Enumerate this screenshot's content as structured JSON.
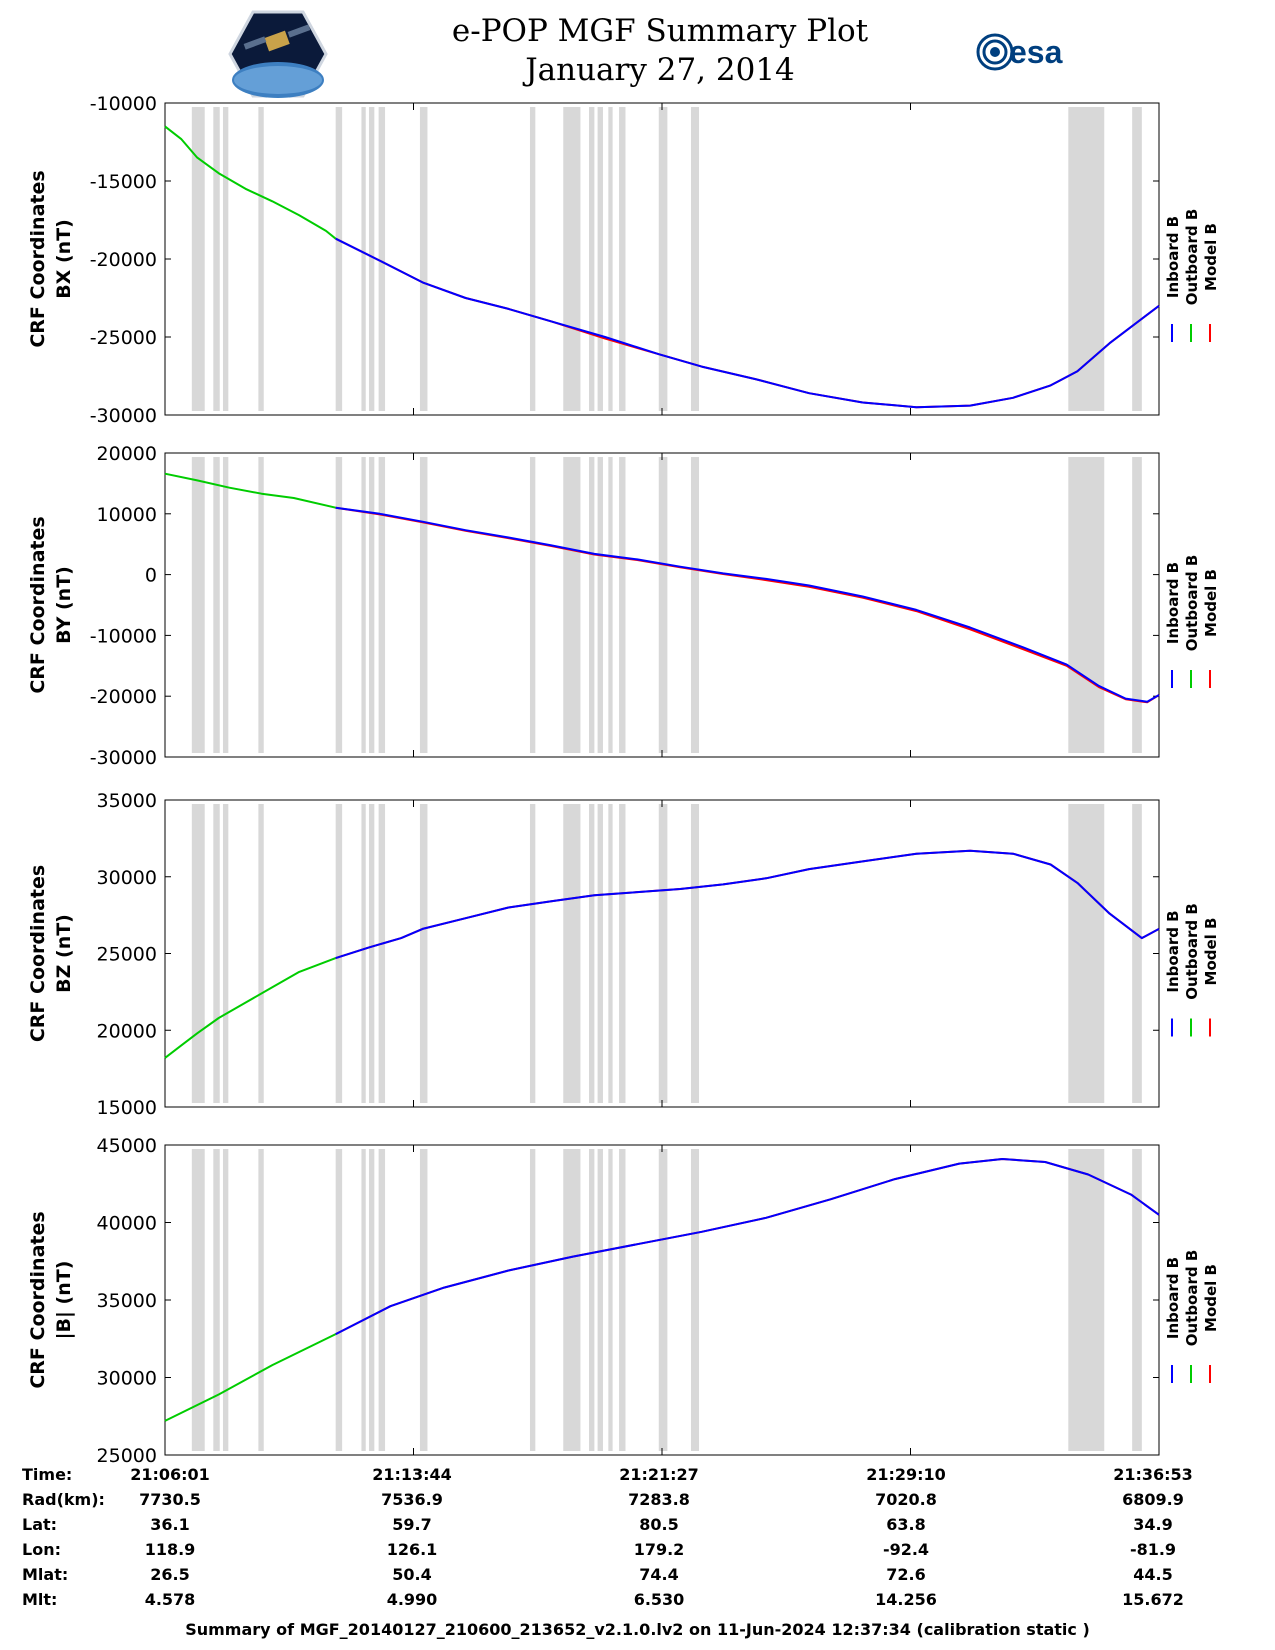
{
  "header": {
    "title": "e-POP MGF Summary Plot",
    "date": "January 27, 2014",
    "esa_logo_text": "esa"
  },
  "colors": {
    "inboard": "#0000ff",
    "outboard": "#00cc00",
    "model": "#ff0000",
    "gap_shading": "#d8d8d8"
  },
  "legend": [
    {
      "label": "Inboard B",
      "color": "#0000ff"
    },
    {
      "label": "Outboard B",
      "color": "#00cc00"
    },
    {
      "label": "Model B",
      "color": "#ff0000"
    }
  ],
  "chart_data": [
    {
      "type": "line",
      "ylabel_top": "CRF Coordinates",
      "ylabel_bottom": "BX (nT)",
      "xlim": [
        0,
        1852
      ],
      "ylim": [
        -30000,
        -10000
      ],
      "yticks": [
        "-10000",
        "-15000",
        "-20000",
        "-25000",
        "-30000"
      ],
      "ytick_values": [
        -10000,
        -15000,
        -20000,
        -25000,
        -30000
      ],
      "gap_intervals": [
        [
          50,
          74
        ],
        [
          90,
          102
        ],
        [
          108,
          118
        ],
        [
          174,
          184
        ],
        [
          318,
          330
        ],
        [
          366,
          374
        ],
        [
          380,
          390
        ],
        [
          398,
          410
        ],
        [
          475,
          489
        ],
        [
          680,
          690
        ],
        [
          742,
          774
        ],
        [
          790,
          800
        ],
        [
          806,
          816
        ],
        [
          826,
          834
        ],
        [
          846,
          858
        ],
        [
          920,
          936
        ],
        [
          980,
          995
        ],
        [
          1683,
          1750
        ],
        [
          1802,
          1820
        ]
      ],
      "outboard_end": 318,
      "series": [
        {
          "name": "Outboard B",
          "x": [
            0,
            30,
            60,
            100,
            150,
            200,
            250,
            300,
            318
          ],
          "y": [
            -11500,
            -12300,
            -13500,
            -14500,
            -15500,
            -16300,
            -17200,
            -18200,
            -18700
          ]
        },
        {
          "name": "Model B",
          "x": [
            318,
            400,
            480,
            560,
            640,
            720,
            820,
            920,
            1000,
            1100,
            1200,
            1300,
            1400,
            1500,
            1580,
            1650,
            1700,
            1760,
            1852
          ],
          "y": [
            -18700,
            -20100,
            -21500,
            -22500,
            -23200,
            -24000,
            -25100,
            -26100,
            -26900,
            -27700,
            -28600,
            -29200,
            -29500,
            -29400,
            -28900,
            -28100,
            -27200,
            -25400,
            -23000
          ]
        },
        {
          "name": "Inboard B",
          "x": [
            318,
            400,
            480,
            560,
            640,
            720,
            820,
            920,
            1000,
            1100,
            1200,
            1300,
            1400,
            1500,
            1580,
            1650,
            1700,
            1760,
            1852
          ],
          "y": [
            -18700,
            -20100,
            -21500,
            -22500,
            -23200,
            -24000,
            -25000,
            -26100,
            -26900,
            -27700,
            -28600,
            -29200,
            -29500,
            -29400,
            -28900,
            -28100,
            -27200,
            -25400,
            -23000
          ]
        }
      ]
    },
    {
      "type": "line",
      "ylabel_top": "CRF Coordinates",
      "ylabel_bottom": "BY (nT)",
      "xlim": [
        0,
        1852
      ],
      "ylim": [
        -30000,
        20000
      ],
      "yticks": [
        "20000",
        "10000",
        "0",
        "-10000",
        "-20000",
        "-30000"
      ],
      "ytick_values": [
        20000,
        10000,
        0,
        -10000,
        -20000,
        -30000
      ],
      "gap_intervals": [
        [
          50,
          74
        ],
        [
          90,
          102
        ],
        [
          108,
          118
        ],
        [
          174,
          184
        ],
        [
          318,
          330
        ],
        [
          366,
          374
        ],
        [
          380,
          390
        ],
        [
          398,
          410
        ],
        [
          475,
          489
        ],
        [
          680,
          690
        ],
        [
          742,
          774
        ],
        [
          790,
          800
        ],
        [
          806,
          816
        ],
        [
          826,
          834
        ],
        [
          846,
          858
        ],
        [
          920,
          936
        ],
        [
          980,
          995
        ],
        [
          1683,
          1750
        ],
        [
          1802,
          1820
        ]
      ],
      "outboard_end": 318,
      "series": [
        {
          "name": "Outboard B",
          "x": [
            0,
            60,
            120,
            180,
            240,
            318
          ],
          "y": [
            16600,
            15500,
            14300,
            13300,
            12600,
            11000
          ]
        },
        {
          "name": "Model B",
          "x": [
            318,
            400,
            480,
            560,
            640,
            720,
            800,
            880,
            960,
            1040,
            1120,
            1200,
            1300,
            1400,
            1500,
            1600,
            1680,
            1740,
            1790,
            1830,
            1852
          ],
          "y": [
            11000,
            9900,
            8600,
            7200,
            6000,
            4700,
            3300,
            2400,
            1200,
            100,
            -900,
            -2000,
            -3800,
            -6000,
            -9000,
            -12300,
            -15000,
            -18500,
            -20500,
            -21000,
            -19800
          ]
        },
        {
          "name": "Inboard B",
          "x": [
            318,
            400,
            480,
            560,
            640,
            720,
            800,
            880,
            960,
            1040,
            1120,
            1200,
            1300,
            1400,
            1500,
            1600,
            1680,
            1740,
            1790,
            1830,
            1852
          ],
          "y": [
            11000,
            10000,
            8700,
            7300,
            6100,
            4800,
            3400,
            2500,
            1300,
            200,
            -700,
            -1800,
            -3600,
            -5800,
            -8700,
            -12000,
            -14800,
            -18300,
            -20400,
            -20900,
            -19800
          ]
        }
      ]
    },
    {
      "type": "line",
      "ylabel_top": "CRF Coordinates",
      "ylabel_bottom": "BZ (nT)",
      "xlim": [
        0,
        1852
      ],
      "ylim": [
        15000,
        35000
      ],
      "yticks": [
        "35000",
        "30000",
        "25000",
        "20000",
        "15000"
      ],
      "ytick_values": [
        35000,
        30000,
        25000,
        20000,
        15000
      ],
      "gap_intervals": [
        [
          50,
          74
        ],
        [
          90,
          102
        ],
        [
          108,
          118
        ],
        [
          174,
          184
        ],
        [
          318,
          330
        ],
        [
          366,
          374
        ],
        [
          380,
          390
        ],
        [
          398,
          410
        ],
        [
          475,
          489
        ],
        [
          680,
          690
        ],
        [
          742,
          774
        ],
        [
          790,
          800
        ],
        [
          806,
          816
        ],
        [
          826,
          834
        ],
        [
          846,
          858
        ],
        [
          920,
          936
        ],
        [
          980,
          995
        ],
        [
          1683,
          1750
        ],
        [
          1802,
          1820
        ]
      ],
      "outboard_end": 318,
      "series": [
        {
          "name": "Outboard B",
          "x": [
            0,
            30,
            60,
            100,
            150,
            200,
            250,
            318
          ],
          "y": [
            18200,
            19000,
            19800,
            20800,
            21800,
            22800,
            23800,
            24700
          ]
        },
        {
          "name": "Model B",
          "x": [
            318,
            380,
            440,
            480,
            560,
            640,
            720,
            800,
            880,
            960,
            1040,
            1120,
            1200,
            1300,
            1400,
            1500,
            1580,
            1650,
            1700,
            1760,
            1820,
            1852
          ],
          "y": [
            24700,
            25400,
            26000,
            26600,
            27300,
            28000,
            28400,
            28800,
            29000,
            29200,
            29500,
            29900,
            30500,
            31000,
            31500,
            31700,
            31500,
            30800,
            29600,
            27600,
            26000,
            26600
          ]
        },
        {
          "name": "Inboard B",
          "x": [
            318,
            380,
            440,
            480,
            560,
            640,
            720,
            800,
            880,
            960,
            1040,
            1120,
            1200,
            1300,
            1400,
            1500,
            1580,
            1650,
            1700,
            1760,
            1820,
            1852
          ],
          "y": [
            24700,
            25400,
            26000,
            26600,
            27300,
            28000,
            28400,
            28800,
            29000,
            29200,
            29500,
            29900,
            30500,
            31000,
            31500,
            31700,
            31500,
            30800,
            29600,
            27600,
            26000,
            26600
          ]
        }
      ]
    },
    {
      "type": "line",
      "ylabel_top": "CRF Coordinates",
      "ylabel_bottom": "|B| (nT)",
      "xlim": [
        0,
        1852
      ],
      "ylim": [
        25000,
        45000
      ],
      "yticks": [
        "45000",
        "40000",
        "35000",
        "30000",
        "25000"
      ],
      "ytick_values": [
        45000,
        40000,
        35000,
        30000,
        25000
      ],
      "gap_intervals": [
        [
          50,
          74
        ],
        [
          90,
          102
        ],
        [
          108,
          118
        ],
        [
          174,
          184
        ],
        [
          318,
          330
        ],
        [
          366,
          374
        ],
        [
          380,
          390
        ],
        [
          398,
          410
        ],
        [
          475,
          489
        ],
        [
          680,
          690
        ],
        [
          742,
          774
        ],
        [
          790,
          800
        ],
        [
          806,
          816
        ],
        [
          826,
          834
        ],
        [
          846,
          858
        ],
        [
          920,
          936
        ],
        [
          980,
          995
        ],
        [
          1683,
          1750
        ],
        [
          1802,
          1820
        ]
      ],
      "outboard_end": 318,
      "series": [
        {
          "name": "Outboard B",
          "x": [
            0,
            100,
            200,
            318
          ],
          "y": [
            27200,
            28900,
            30800,
            32800
          ]
        },
        {
          "name": "Model B",
          "x": [
            318,
            420,
            520,
            640,
            760,
            880,
            1000,
            1120,
            1240,
            1360,
            1480,
            1560,
            1640,
            1720,
            1800,
            1852
          ],
          "y": [
            32800,
            34600,
            35800,
            36900,
            37800,
            38600,
            39400,
            40300,
            41500,
            42800,
            43800,
            44100,
            43900,
            43100,
            41800,
            40500
          ]
        },
        {
          "name": "Inboard B",
          "x": [
            318,
            420,
            520,
            640,
            760,
            880,
            1000,
            1120,
            1240,
            1360,
            1480,
            1560,
            1640,
            1720,
            1800,
            1852
          ],
          "y": [
            32800,
            34600,
            35800,
            36900,
            37800,
            38600,
            39400,
            40300,
            41500,
            42800,
            43800,
            44100,
            43900,
            43100,
            41800,
            40500
          ]
        }
      ]
    }
  ],
  "info_table": {
    "labels": [
      "Time:",
      "Rad(km):",
      "Lat:",
      "Lon:",
      "Mlat:",
      "Mlt:"
    ],
    "columns": [
      [
        "21:06:01",
        "7730.5",
        "36.1",
        "118.9",
        "26.5",
        "4.578"
      ],
      [
        "21:13:44",
        "7536.9",
        "59.7",
        "126.1",
        "50.4",
        "4.990"
      ],
      [
        "21:21:27",
        "7283.8",
        "80.5",
        "179.2",
        "74.4",
        "6.530"
      ],
      [
        "21:29:10",
        "7020.8",
        "63.8",
        "-92.4",
        "72.6",
        "14.256"
      ],
      [
        "21:36:53",
        "6809.9",
        "34.9",
        "-81.9",
        "44.5",
        "15.672"
      ]
    ]
  },
  "footer": "Summary of MGF_20140127_210600_213652_v2.1.0.lv2 on 11-Jun-2024 12:37:34 (calibration static )"
}
